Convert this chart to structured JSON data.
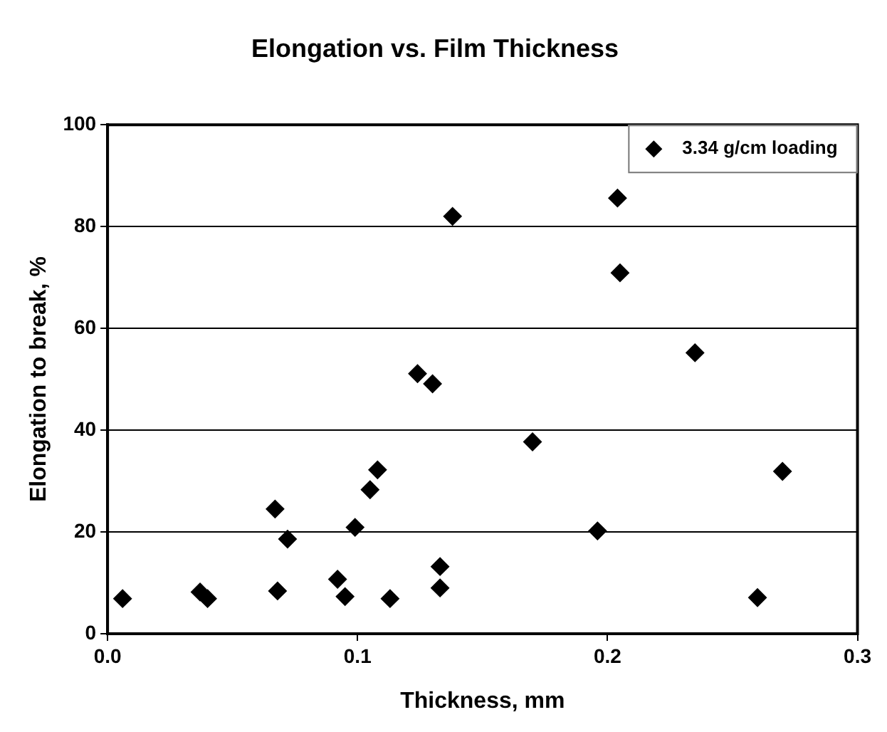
{
  "chart_data": {
    "type": "scatter",
    "title": "Elongation vs. Film Thickness",
    "xlabel": "Thickness, mm",
    "ylabel": "Elongation to break, %",
    "series": [
      {
        "name": "3.34 g/cm loading",
        "color": "#000000",
        "x": [
          0.006,
          0.037,
          0.04,
          0.067,
          0.072,
          0.068,
          0.092,
          0.095,
          0.099,
          0.105,
          0.108,
          0.113,
          0.124,
          0.13,
          0.138,
          0.133,
          0.133,
          0.204,
          0.205,
          0.235,
          0.17,
          0.27,
          0.196,
          0.26
        ],
        "values": [
          6.9,
          8.2,
          6.9,
          24.5,
          18.6,
          8.4,
          10.7,
          7.3,
          20.9,
          28.3,
          32.2,
          6.9,
          51.1,
          49.1,
          82.0,
          13.2,
          9.0,
          85.6,
          70.9,
          55.2,
          37.7,
          31.9,
          20.2,
          7.1
        ]
      }
    ],
    "xlim": [
      0,
      0.3
    ],
    "xticks": [
      {
        "value": 0,
        "label": "0.0"
      },
      {
        "value": 0.1,
        "label": "0.1"
      },
      {
        "value": 0.2,
        "label": "0.2"
      },
      {
        "value": 0.3,
        "label": "0.3"
      }
    ],
    "ylim": [
      0,
      100
    ],
    "yticks": [
      0,
      20,
      40,
      60,
      80,
      100
    ],
    "grid": "y",
    "legend": "top right",
    "marker": "diamond"
  }
}
